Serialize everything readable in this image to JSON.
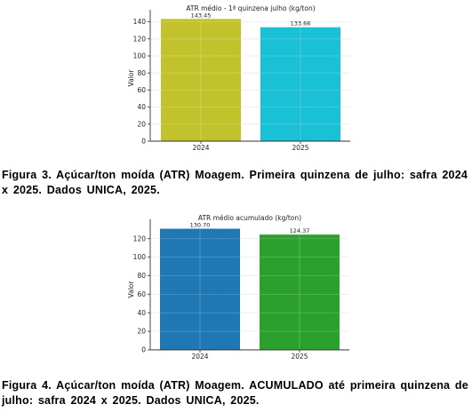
{
  "charts": [
    {
      "type": "bar",
      "title": "ATR médio - 1ª quinzena julho (kg/ton)",
      "xlabel": "",
      "ylabel": "Valor",
      "categories": [
        "2024",
        "2025"
      ],
      "values": [
        143.45,
        133.66
      ],
      "value_labels": [
        "143.45",
        "133.66"
      ],
      "ylim": [
        0,
        150
      ],
      "yticks": [
        "0",
        "20",
        "40",
        "60",
        "80",
        "100",
        "120",
        "140"
      ],
      "grid": true,
      "colors": [
        "#C2C32C",
        "#1AC0D6"
      ],
      "caption": "Figura 3.  Açúcar/ton moída (ATR) Moagem. Primeira quinzena de julho:  safra 2024 x 2025.  Dados UNICA, 2025."
    },
    {
      "type": "bar",
      "title": "ATR médio acumulado (kg/ton)",
      "xlabel": "",
      "ylabel": "Valor",
      "categories": [
        "2024",
        "2025"
      ],
      "values": [
        130.7,
        124.37
      ],
      "value_labels": [
        "130.70",
        "124.37"
      ],
      "ylim": [
        0,
        137
      ],
      "yticks": [
        "0",
        "20",
        "40",
        "60",
        "80",
        "100",
        "120"
      ],
      "grid": true,
      "colors": [
        "#1F77B4",
        "#2CA02C"
      ],
      "caption": "Figura 4.  Açúcar/ton moída (ATR) Moagem. ACUMULADO  até primeira quinzena de julho:  safra 2024 x 2025.  Dados UNICA, 2025."
    }
  ],
  "chart_data": [
    {
      "type": "bar",
      "title": "ATR médio - 1ª quinzena julho (kg/ton)",
      "ylabel": "Valor",
      "categories": [
        "2024",
        "2025"
      ],
      "values": [
        143.45,
        133.66
      ],
      "ylim": [
        0,
        150
      ],
      "grid": true
    },
    {
      "type": "bar",
      "title": "ATR médio acumulado (kg/ton)",
      "ylabel": "Valor",
      "categories": [
        "2024",
        "2025"
      ],
      "values": [
        130.7,
        124.37
      ],
      "ylim": [
        0,
        137
      ],
      "grid": true
    }
  ]
}
